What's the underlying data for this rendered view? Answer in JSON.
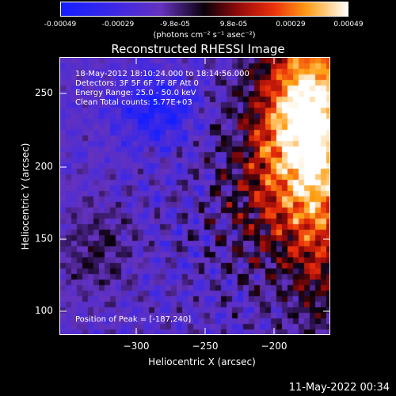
{
  "colorbar": {
    "ticks": [
      "-0.00049",
      "-0.00029",
      "-9.8e-05",
      "9.8e-05",
      "0.00029",
      "0.00049"
    ],
    "unit": "(photons cm⁻² s⁻¹ asec⁻²)"
  },
  "title": "Reconstructed RHESSI Image",
  "info": {
    "line1": "18-May-2012 18:10:24.000 to 18:14:56.000",
    "line2": "Detectors: 3F 5F 6F 7F 8F  Att 0",
    "line3": "Energy Range: 25.0 - 50.0 keV",
    "line4": "Clean     Total counts: 5.77E+03"
  },
  "peak_label": "Position of Peak = [-187,240]",
  "axes": {
    "xlabel": "Heliocentric X (arcsec)",
    "ylabel": "Heliocentric Y (arcsec)",
    "xticks": [
      "−300",
      "−250",
      "−200"
    ],
    "yticks": [
      "250",
      "200",
      "150",
      "100"
    ]
  },
  "footer_date": "11-May-2022 00:34",
  "colors": {
    "background": "#000000",
    "text": "#ffffff"
  }
}
